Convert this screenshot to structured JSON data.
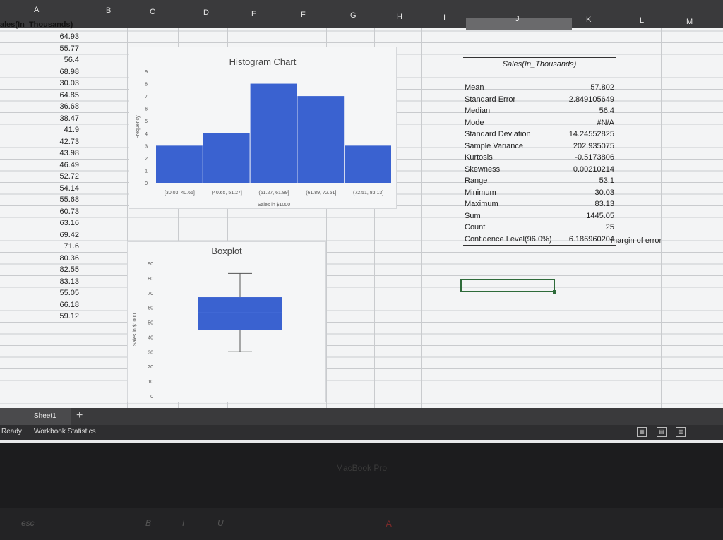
{
  "columns": [
    "A",
    "B",
    "C",
    "D",
    "E",
    "F",
    "G",
    "H",
    "I",
    "J",
    "K",
    "L",
    "M"
  ],
  "column_a": {
    "header": "ales(In_Thousands)",
    "values": [
      "64.93",
      "55.77",
      "56.4",
      "68.98",
      "30.03",
      "64.85",
      "36.68",
      "38.47",
      "41.9",
      "42.73",
      "43.98",
      "46.49",
      "52.72",
      "54.14",
      "55.68",
      "60.73",
      "63.16",
      "69.42",
      "71.6",
      "80.36",
      "82.55",
      "83.13",
      "55.05",
      "66.18",
      "59.12"
    ]
  },
  "histogram": {
    "title": "Histogram Chart",
    "ylabel": "Frequency",
    "xlabel": "Sales in $1000",
    "y_ticks": [
      "0",
      "1",
      "2",
      "3",
      "4",
      "5",
      "6",
      "7",
      "8",
      "9"
    ],
    "bins": [
      "[30.03, 40.65]",
      "(40.65, 51.27]",
      "(51.27, 61.89]",
      "(61.89, 72.51]",
      "(72.51, 83.13]"
    ],
    "bar_color": "#3a62d0"
  },
  "boxplot": {
    "title": "Boxplot",
    "ylabel": "Sales in $1000",
    "y_ticks": [
      "0",
      "10",
      "20",
      "30",
      "40",
      "50",
      "60",
      "70",
      "80",
      "90"
    ],
    "box_color": "#3a62d0"
  },
  "chart_data": [
    {
      "type": "bar",
      "title": "Histogram Chart",
      "xlabel": "Sales in $1000",
      "ylabel": "Frequency",
      "categories": [
        "[30.03, 40.65]",
        "(40.65, 51.27]",
        "(51.27, 61.89]",
        "(61.89, 72.51]",
        "(72.51, 83.13]"
      ],
      "values": [
        3,
        4,
        8,
        7,
        3
      ],
      "ylim": [
        0,
        9
      ]
    },
    {
      "type": "boxplot",
      "title": "Boxplot",
      "ylabel": "Sales in $1000",
      "ylim": [
        0,
        90
      ],
      "min": 30.03,
      "q1": 45,
      "median": 56.4,
      "q3": 67,
      "max": 83.13
    }
  ],
  "stats": {
    "title": "Sales(In_Thousands)",
    "rows": [
      {
        "label": "Mean",
        "value": "57.802"
      },
      {
        "label": "Standard Error",
        "value": "2.849105649"
      },
      {
        "label": "Median",
        "value": "56.4"
      },
      {
        "label": "Mode",
        "value": "#N/A"
      },
      {
        "label": "Standard Deviation",
        "value": "14.24552825"
      },
      {
        "label": "Sample Variance",
        "value": "202.935075"
      },
      {
        "label": "Kurtosis",
        "value": "-0.5173806"
      },
      {
        "label": "Skewness",
        "value": "0.00210214"
      },
      {
        "label": "Range",
        "value": "53.1"
      },
      {
        "label": "Minimum",
        "value": "30.03"
      },
      {
        "label": "Maximum",
        "value": "83.13"
      },
      {
        "label": "Sum",
        "value": "1445.05"
      },
      {
        "label": "Count",
        "value": "25"
      },
      {
        "label": "Confidence Level(96.0%)",
        "value": "6.186960204"
      }
    ],
    "note": "margin of error"
  },
  "sheet_tab": "Sheet1",
  "status": {
    "ready": "Ready",
    "workbook": "Workbook Statistics"
  },
  "laptop_brand": "MacBook Pro",
  "touchbar": {
    "esc": "esc",
    "bold": "B",
    "italic": "I",
    "underline": "U",
    "font_color": "A"
  }
}
